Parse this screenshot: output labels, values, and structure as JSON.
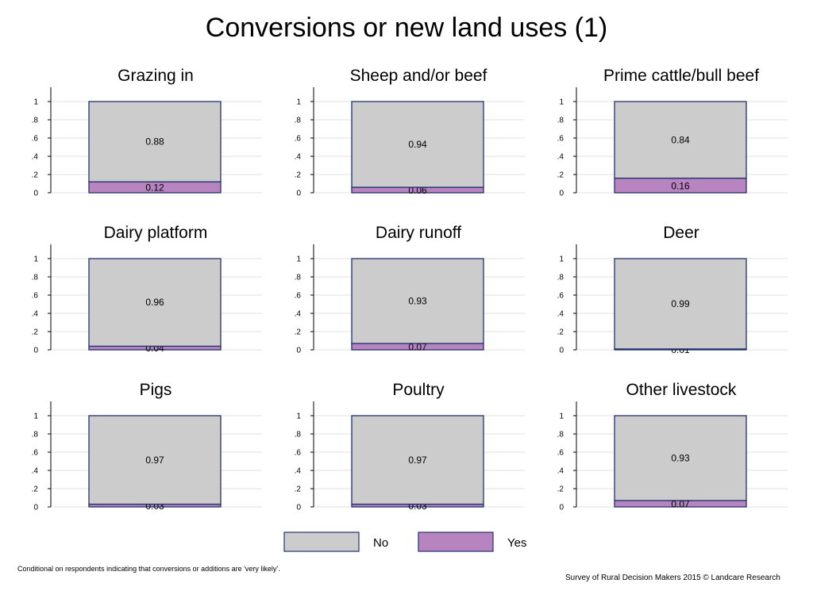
{
  "title": "Conversions or new land uses (1)",
  "footnote": "Conditional on respondents indicating that conversions or additions are 'very likely'.",
  "credit": "Survey of Rural Decision Makers 2015 © Landcare Research",
  "colors": {
    "no": "#cccccc",
    "yes": "#b784c0",
    "outline": "#22336e",
    "grid": "#e2e2e2"
  },
  "legend": [
    {
      "label": "No",
      "key": "no"
    },
    {
      "label": "Yes",
      "key": "yes"
    }
  ],
  "chart_data": [
    {
      "type": "bar",
      "title": "Grazing in",
      "ylim": [
        0,
        1
      ],
      "yticks": [
        "0",
        ".2",
        ".4",
        ".6",
        ".8",
        "1"
      ],
      "series": [
        {
          "name": "Yes",
          "values": [
            0.12
          ],
          "label": "0.12"
        },
        {
          "name": "No",
          "values": [
            0.88
          ],
          "label": "0.88"
        }
      ]
    },
    {
      "type": "bar",
      "title": "Sheep and/or beef",
      "ylim": [
        0,
        1
      ],
      "yticks": [
        "0",
        ".2",
        ".4",
        ".6",
        ".8",
        "1"
      ],
      "series": [
        {
          "name": "Yes",
          "values": [
            0.06
          ],
          "label": "0.06"
        },
        {
          "name": "No",
          "values": [
            0.94
          ],
          "label": "0.94"
        }
      ]
    },
    {
      "type": "bar",
      "title": "Prime cattle/bull beef",
      "ylim": [
        0,
        1
      ],
      "yticks": [
        "0",
        ".2",
        ".4",
        ".6",
        ".8",
        "1"
      ],
      "series": [
        {
          "name": "Yes",
          "values": [
            0.16
          ],
          "label": "0.16"
        },
        {
          "name": "No",
          "values": [
            0.84
          ],
          "label": "0.84"
        }
      ]
    },
    {
      "type": "bar",
      "title": "Dairy platform",
      "ylim": [
        0,
        1
      ],
      "yticks": [
        "0",
        ".2",
        ".4",
        ".6",
        ".8",
        "1"
      ],
      "series": [
        {
          "name": "Yes",
          "values": [
            0.04
          ],
          "label": "0.04"
        },
        {
          "name": "No",
          "values": [
            0.96
          ],
          "label": "0.96"
        }
      ]
    },
    {
      "type": "bar",
      "title": "Dairy runoff",
      "ylim": [
        0,
        1
      ],
      "yticks": [
        "0",
        ".2",
        ".4",
        ".6",
        ".8",
        "1"
      ],
      "series": [
        {
          "name": "Yes",
          "values": [
            0.07
          ],
          "label": "0.07"
        },
        {
          "name": "No",
          "values": [
            0.93
          ],
          "label": "0.93"
        }
      ]
    },
    {
      "type": "bar",
      "title": "Deer",
      "ylim": [
        0,
        1
      ],
      "yticks": [
        "0",
        ".2",
        ".4",
        ".6",
        ".8",
        "1"
      ],
      "series": [
        {
          "name": "Yes",
          "values": [
            0.01
          ],
          "label": "0.01"
        },
        {
          "name": "No",
          "values": [
            0.99
          ],
          "label": "0.99"
        }
      ]
    },
    {
      "type": "bar",
      "title": "Pigs",
      "ylim": [
        0,
        1
      ],
      "yticks": [
        "0",
        ".2",
        ".4",
        ".6",
        ".8",
        "1"
      ],
      "series": [
        {
          "name": "Yes",
          "values": [
            0.03
          ],
          "label": "0.03"
        },
        {
          "name": "No",
          "values": [
            0.97
          ],
          "label": "0.97"
        }
      ]
    },
    {
      "type": "bar",
      "title": "Poultry",
      "ylim": [
        0,
        1
      ],
      "yticks": [
        "0",
        ".2",
        ".4",
        ".6",
        ".8",
        "1"
      ],
      "series": [
        {
          "name": "Yes",
          "values": [
            0.03
          ],
          "label": "0.03"
        },
        {
          "name": "No",
          "values": [
            0.97
          ],
          "label": "0.97"
        }
      ]
    },
    {
      "type": "bar",
      "title": "Other livestock",
      "ylim": [
        0,
        1
      ],
      "yticks": [
        "0",
        ".2",
        ".4",
        ".6",
        ".8",
        "1"
      ],
      "series": [
        {
          "name": "Yes",
          "values": [
            0.07
          ],
          "label": "0.07"
        },
        {
          "name": "No",
          "values": [
            0.93
          ],
          "label": "0.93"
        }
      ]
    }
  ]
}
